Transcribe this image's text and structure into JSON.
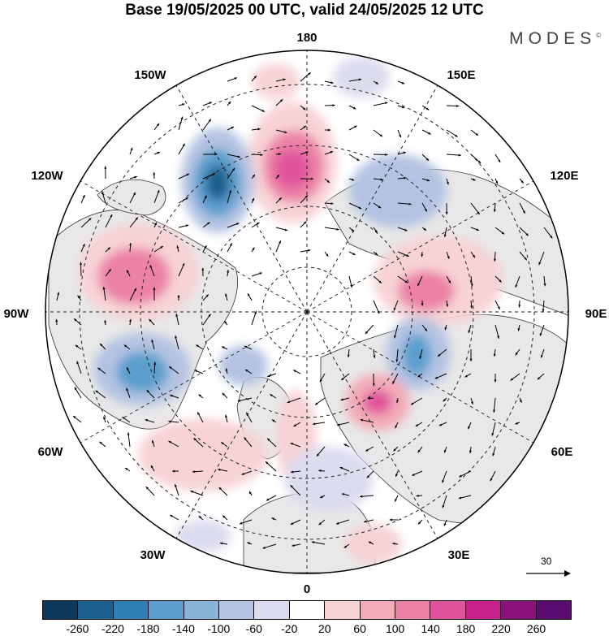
{
  "title": "Base 19/05/2025 00 UTC, valid 24/05/2025 12 UTC",
  "brand": "MODES",
  "brand_mark": "©",
  "longitude_labels": {
    "lon_180": "180",
    "lon_150E": "150E",
    "lon_120E": "120E",
    "lon_90E": "90E",
    "lon_60E": "60E",
    "lon_30E": "30E",
    "lon_0": "0",
    "lon_30W": "30W",
    "lon_60W": "60W",
    "lon_90W": "90W",
    "lon_120W": "120W",
    "lon_150W": "150W"
  },
  "reference_vector": "30",
  "colorbar": {
    "colors": [
      "#0d3a5c",
      "#1b5f8e",
      "#2f7fb5",
      "#5c9fce",
      "#8ab3d9",
      "#b4c3e2",
      "#dcdcef",
      "#ffffff",
      "#f7d3d6",
      "#f3abb8",
      "#ec82a6",
      "#e0529c",
      "#c8208a",
      "#8a127a",
      "#5a0c70"
    ],
    "ticks": [
      "-260",
      "-220",
      "-180",
      "-140",
      "-100",
      "-60",
      "-20",
      "20",
      "60",
      "100",
      "140",
      "180",
      "220",
      "260"
    ]
  },
  "colors": {
    "land": "#e8e8e8",
    "ocean": "#ffffff",
    "positive": "#e0529c",
    "negative": "#2f7fb5"
  }
}
